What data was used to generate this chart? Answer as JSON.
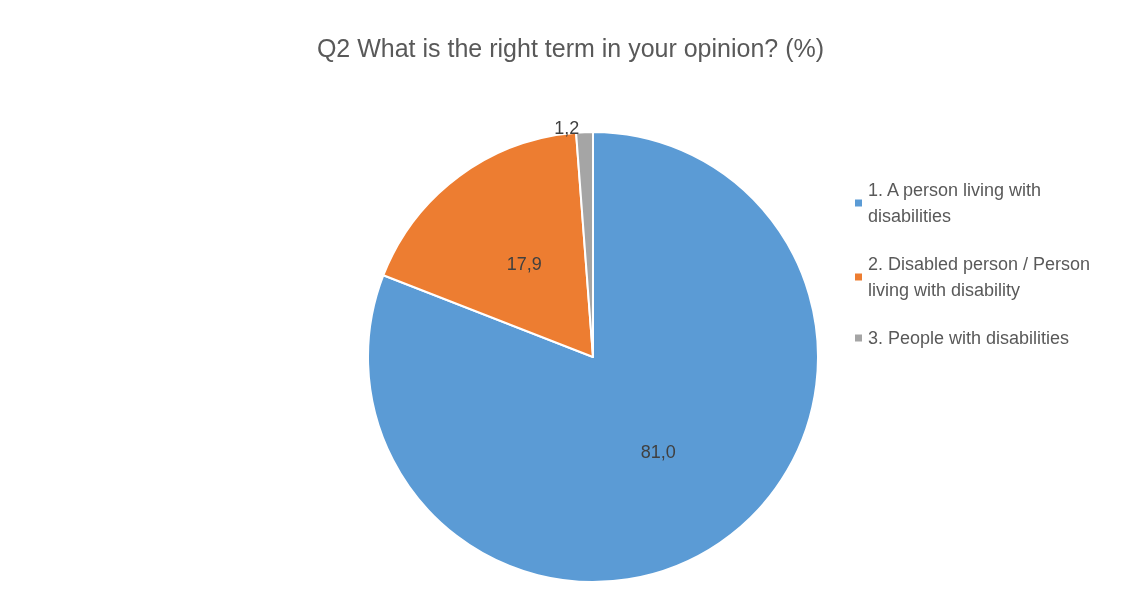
{
  "chart_data": {
    "type": "pie",
    "title": "Q2 What is the right term in your opinion? (%)",
    "categories": [
      "1. A person living with disabilities",
      "2. Disabled person / Person living with disability",
      "3. People with disabilities"
    ],
    "values": [
      81.0,
      17.9,
      1.2
    ],
    "value_labels": [
      "81,0",
      "17,9",
      "1,2"
    ],
    "colors": [
      "#5b9bd5",
      "#ed7d31",
      "#a5a5a5"
    ],
    "legend": "right"
  }
}
